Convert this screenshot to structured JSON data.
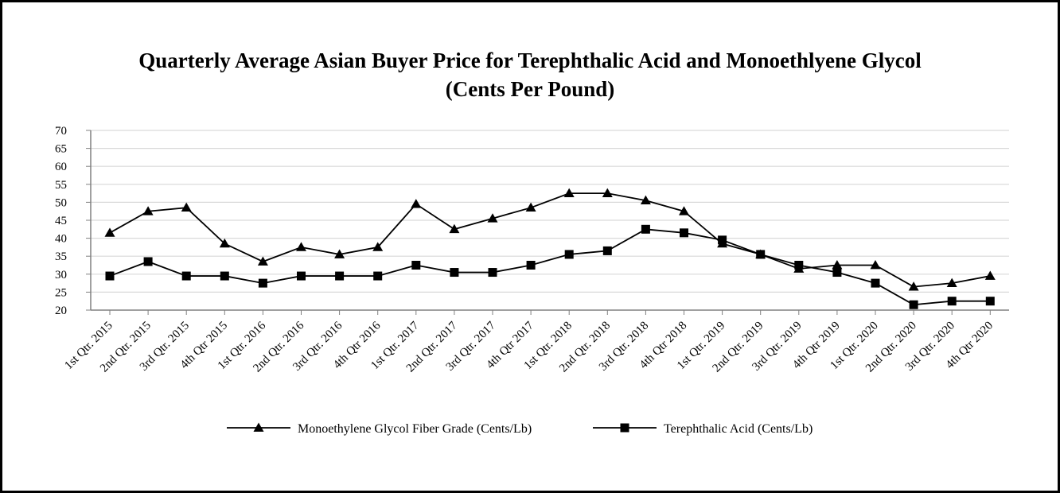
{
  "chart_data": {
    "type": "line",
    "title": "Quarterly Average Asian Buyer Price for Terephthalic Acid and Monoethlyene Glycol",
    "subtitle": "(Cents Per Pound)",
    "xlabel": "",
    "ylabel": "",
    "ylim": [
      20,
      70
    ],
    "yticks": [
      "70",
      "65",
      "60",
      "55",
      "50",
      "45",
      "40",
      "35",
      "30",
      "25",
      "20"
    ],
    "grid": true,
    "legend_position": "bottom",
    "categories": [
      "1st Qtr. 2015",
      "2nd Qtr. 2015",
      "3rd Qtr. 2015",
      "4th Qtr 2015",
      "1st Qtr. 2016",
      "2nd Qtr. 2016",
      "3rd Qtr. 2016",
      "4th Qtr 2016",
      "1st Qtr. 2017",
      "2nd Qtr. 2017",
      "3rd Qtr. 2017",
      "4th Qtr 2017",
      "1st Qtr. 2018",
      "2nd Qtr. 2018",
      "3rd Qtr. 2018",
      "4th Qtr 2018",
      "1st Qtr. 2019",
      "2nd Qtr. 2019",
      "3rd Qtr. 2019",
      "4th Qtr 2019",
      "1st Qtr. 2020",
      "2nd Qtr. 2020",
      "3rd Qtr. 2020",
      "4th Qtr 2020"
    ],
    "series": [
      {
        "name": "Monoethylene Glycol Fiber Grade (Cents/Lb)",
        "marker": "triangle",
        "color": "#000000",
        "values": [
          41.5,
          47.5,
          48.5,
          38.5,
          33.5,
          37.5,
          35.5,
          37.5,
          49.5,
          42.5,
          45.5,
          48.5,
          52.5,
          52.5,
          50.5,
          47.5,
          38.5,
          35.5,
          31.5,
          32.5,
          32.5,
          26.5,
          27.5,
          29.5
        ]
      },
      {
        "name": "Terephthalic Acid (Cents/Lb)",
        "marker": "square",
        "color": "#000000",
        "values": [
          29.5,
          33.5,
          29.5,
          29.5,
          27.5,
          29.5,
          29.5,
          29.5,
          32.5,
          30.5,
          30.5,
          32.5,
          35.5,
          36.5,
          42.5,
          41.5,
          39.5,
          35.5,
          32.5,
          30.5,
          27.5,
          21.5,
          22.5,
          22.5
        ]
      }
    ],
    "gridline_color": "#d9d9d9"
  }
}
